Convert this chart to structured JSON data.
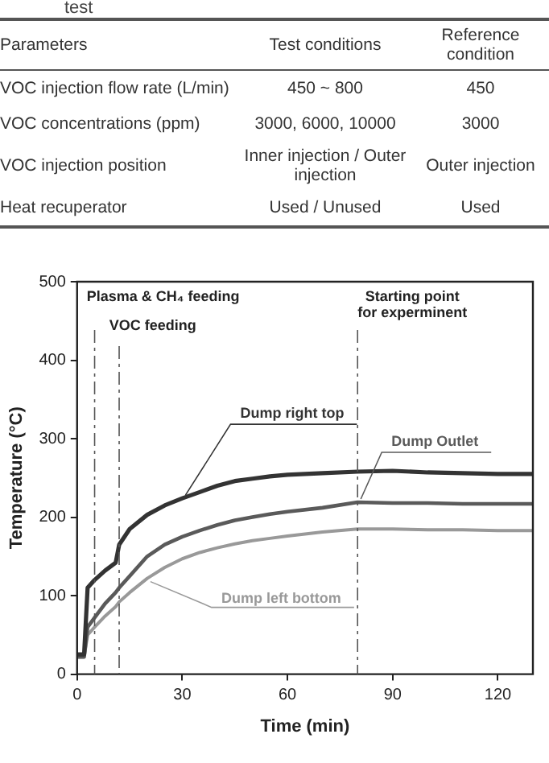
{
  "chart_data": {
    "type": "line",
    "xlabel": "Time (min)",
    "ylabel": "Temperature (°C)",
    "annotations": [
      "test",
      "Parameters",
      "Test conditions",
      "Reference condition",
      "VOC injection flow rate (L/min)",
      "450 ~ 800",
      "450",
      "VOC concentrations (ppm)",
      "3000, 6000, 10000",
      "3000",
      "VOC injection position",
      "Inner injection / Outer injection",
      "Outer injection",
      "Heat recuperator",
      "Used / Unused",
      "Used"
    ],
    "x": [
      0,
      2,
      3,
      5,
      8,
      11,
      12,
      15,
      20,
      25,
      30,
      35,
      40,
      45,
      50,
      55,
      60,
      70,
      80,
      90,
      100,
      110,
      120,
      130
    ],
    "series": [
      {
        "name": "Dump right top",
        "color": "#333333",
        "values": [
          25,
          25,
          110,
          120,
          132,
          142,
          165,
          185,
          203,
          215,
          224,
          232,
          240,
          246,
          249,
          252,
          254,
          256,
          258,
          259,
          257,
          256,
          255,
          255
        ]
      },
      {
        "name": "Dump Outlet",
        "color": "#5a5a5a",
        "values": [
          22,
          22,
          60,
          72,
          90,
          104,
          110,
          125,
          150,
          165,
          175,
          183,
          190,
          196,
          200,
          204,
          207,
          212,
          219,
          218,
          218,
          217,
          217,
          217
        ]
      },
      {
        "name": "Dump left bottom",
        "color": "#999999",
        "values": [
          22,
          22,
          50,
          60,
          74,
          86,
          92,
          104,
          122,
          136,
          147,
          155,
          161,
          166,
          170,
          173,
          176,
          181,
          185,
          185,
          184,
          184,
          183,
          183
        ]
      }
    ],
    "xlim": [
      0,
      130
    ],
    "xticks": [
      0,
      30,
      60,
      90,
      120
    ],
    "ylim": [
      0,
      500
    ],
    "yticks": [
      0,
      100,
      200,
      300,
      400,
      500
    ],
    "ref_lines": [
      {
        "axis": "x",
        "value": 5,
        "label": "Plasma & CH₄ feeding",
        "color": "#555555",
        "line_style": "dashdot"
      },
      {
        "axis": "x",
        "value": 12,
        "label": "VOC feeding",
        "color": "#555555",
        "line_style": "dashdot"
      },
      {
        "axis": "x",
        "value": 80,
        "label": "Starting point\nfor experminent",
        "color": "#555555",
        "line_style": "dashdot"
      }
    ],
    "grid": false,
    "legend": false,
    "marker": "none",
    "line_style": "solid"
  }
}
